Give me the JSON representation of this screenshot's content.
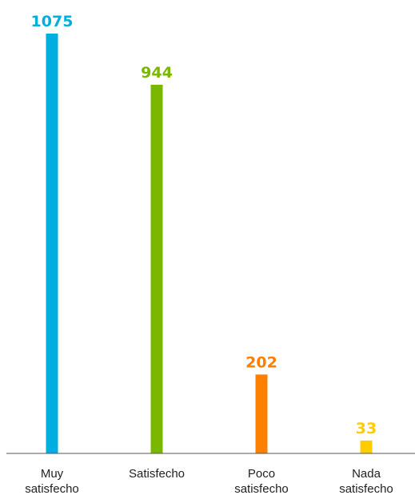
{
  "chart_data": {
    "type": "bar",
    "categories": [
      [
        "Muy",
        "satisfecho"
      ],
      [
        "Satisfecho"
      ],
      [
        "Poco",
        "satisfecho"
      ],
      [
        "Nada",
        "satisfecho"
      ]
    ],
    "values": [
      1075,
      944,
      202,
      33
    ],
    "value_labels": [
      "1075",
      "944",
      "202",
      "33"
    ],
    "colors": [
      "#00aee0",
      "#7ab800",
      "#ff7f00",
      "#ffcc00"
    ],
    "title": "",
    "xlabel": "",
    "ylabel": "",
    "ylim": [
      0,
      1075
    ],
    "grid": false,
    "legend": "none"
  }
}
